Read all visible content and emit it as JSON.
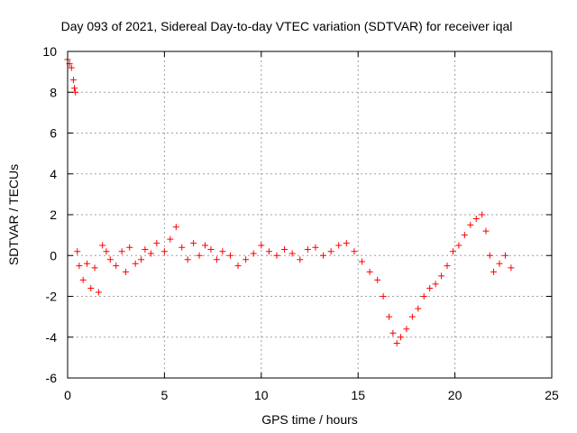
{
  "chart_data": {
    "type": "scatter",
    "title": "Day 093 of 2021, Sidereal Day-to-day VTEC variation (SDTVAR) for receiver iqal",
    "xlabel": "GPS time / hours",
    "ylabel": "SDTVAR / TECUs",
    "xlim": [
      0,
      25
    ],
    "ylim": [
      -6,
      10
    ],
    "xticks": [
      0,
      5,
      10,
      15,
      20,
      25
    ],
    "yticks": [
      -6,
      -4,
      -2,
      0,
      2,
      4,
      6,
      8,
      10
    ],
    "grid": true,
    "marker": "+",
    "color": "#ff0000",
    "series": [
      {
        "name": "SDTVAR",
        "x": [
          0.0,
          0.1,
          0.2,
          0.3,
          0.35,
          0.4,
          0.5,
          0.6,
          0.8,
          1.0,
          1.2,
          1.4,
          1.6,
          1.8,
          2.0,
          2.2,
          2.5,
          2.8,
          3.0,
          3.2,
          3.5,
          3.8,
          4.0,
          4.3,
          4.6,
          5.0,
          5.3,
          5.6,
          5.9,
          6.2,
          6.5,
          6.8,
          7.1,
          7.4,
          7.7,
          8.0,
          8.4,
          8.8,
          9.2,
          9.6,
          10.0,
          10.4,
          10.8,
          11.2,
          11.6,
          12.0,
          12.4,
          12.8,
          13.2,
          13.6,
          14.0,
          14.4,
          14.8,
          15.2,
          15.6,
          16.0,
          16.3,
          16.6,
          16.8,
          17.0,
          17.2,
          17.5,
          17.8,
          18.1,
          18.4,
          18.7,
          19.0,
          19.3,
          19.6,
          19.9,
          20.2,
          20.5,
          20.8,
          21.1,
          21.4,
          21.6,
          21.8,
          22.0,
          22.3,
          22.6,
          22.9
        ],
        "y": [
          9.6,
          9.4,
          9.2,
          8.6,
          8.2,
          8.0,
          0.2,
          -0.5,
          -1.2,
          -0.4,
          -1.6,
          -0.6,
          -1.8,
          0.5,
          0.2,
          -0.2,
          -0.5,
          0.2,
          -0.8,
          0.4,
          -0.4,
          -0.2,
          0.3,
          0.1,
          0.6,
          0.2,
          0.8,
          1.4,
          0.4,
          -0.2,
          0.6,
          0.0,
          0.5,
          0.3,
          -0.2,
          0.2,
          0.0,
          -0.5,
          -0.2,
          0.1,
          0.5,
          0.2,
          0.0,
          0.3,
          0.1,
          -0.2,
          0.3,
          0.4,
          0.0,
          0.2,
          0.5,
          0.6,
          0.2,
          -0.3,
          -0.8,
          -1.2,
          -2.0,
          -3.0,
          -3.8,
          -4.3,
          -4.0,
          -3.6,
          -3.0,
          -2.6,
          -2.0,
          -1.6,
          -1.4,
          -1.0,
          -0.5,
          0.2,
          0.5,
          1.0,
          1.5,
          1.8,
          2.0,
          1.2,
          0.0,
          -0.8,
          -0.4,
          0.0,
          -0.6
        ]
      }
    ]
  }
}
